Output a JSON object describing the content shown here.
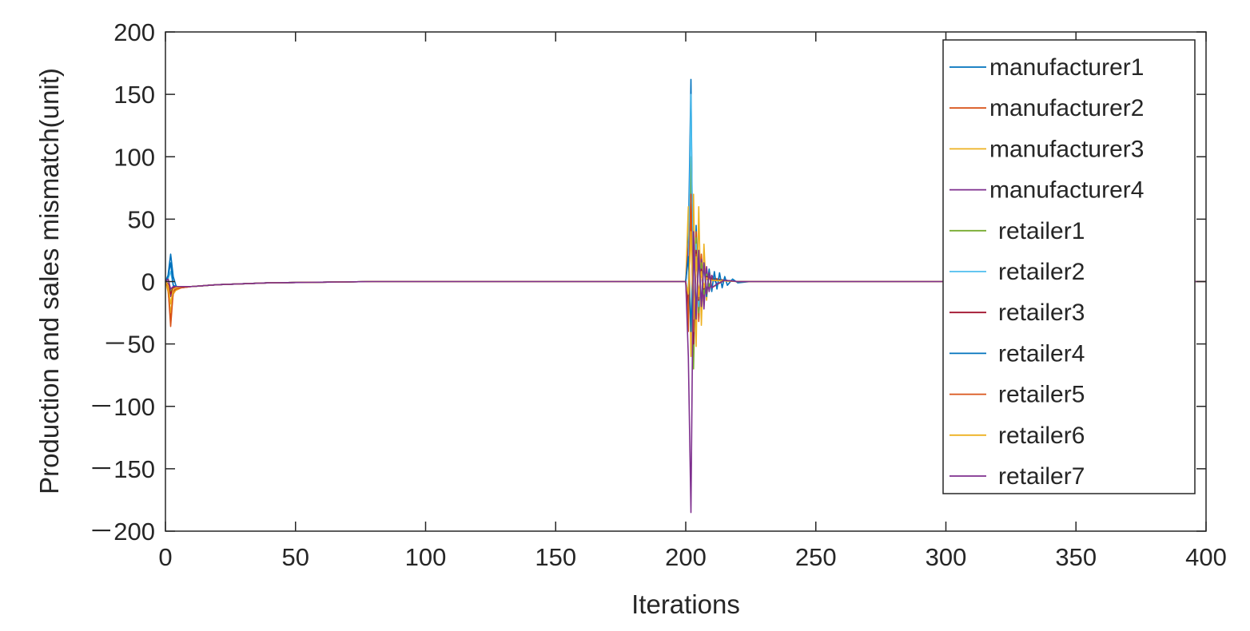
{
  "chart_data": {
    "type": "line",
    "title": "",
    "xlabel": "Iterations",
    "ylabel": "Production and sales mismatch(unit)",
    "xlim": [
      0,
      400
    ],
    "ylim": [
      -200,
      200
    ],
    "xticks": [
      0,
      50,
      100,
      150,
      200,
      250,
      300,
      350,
      400
    ],
    "yticks": [
      200,
      150,
      100,
      50,
      0,
      -50,
      -100,
      -150,
      -200
    ],
    "xtick_labels": [
      "0",
      "50",
      "100",
      "150",
      "200",
      "250",
      "300",
      "350",
      "400"
    ],
    "ytick_labels": [
      "200",
      "150",
      "100",
      "50",
      "0",
      "－50",
      "－100",
      "－150",
      "－200"
    ],
    "grid": false,
    "legend_position": "top-right",
    "series": [
      {
        "name": "manufacturer1",
        "color": "#0072BD",
        "points": [
          [
            0,
            0
          ],
          [
            1,
            5
          ],
          [
            2,
            22
          ],
          [
            3,
            4
          ],
          [
            4,
            -3
          ],
          [
            5,
            -6
          ],
          [
            6,
            -4
          ],
          [
            10,
            -4
          ],
          [
            20,
            -2.5
          ],
          [
            40,
            -1
          ],
          [
            80,
            0
          ],
          [
            200,
            0
          ],
          [
            201,
            30
          ],
          [
            202,
            162
          ],
          [
            203,
            -50
          ],
          [
            204,
            45
          ],
          [
            205,
            -30
          ],
          [
            206,
            20
          ],
          [
            207,
            -14
          ],
          [
            208,
            9
          ],
          [
            209,
            -6
          ],
          [
            210,
            4
          ],
          [
            212,
            -2
          ],
          [
            215,
            1
          ],
          [
            220,
            0
          ],
          [
            400,
            0
          ]
        ]
      },
      {
        "name": "manufacturer2",
        "color": "#D95319",
        "points": [
          [
            0,
            0
          ],
          [
            1,
            -5
          ],
          [
            2,
            -30
          ],
          [
            3,
            -8
          ],
          [
            4,
            -7
          ],
          [
            5,
            -6
          ],
          [
            6,
            -5
          ],
          [
            10,
            -4
          ],
          [
            20,
            -2.5
          ],
          [
            40,
            -1
          ],
          [
            80,
            0
          ],
          [
            200,
            0
          ],
          [
            201,
            -40
          ],
          [
            202,
            78
          ],
          [
            203,
            -60
          ],
          [
            204,
            40
          ],
          [
            205,
            -32
          ],
          [
            206,
            22
          ],
          [
            207,
            -14
          ],
          [
            208,
            8
          ],
          [
            209,
            -5
          ],
          [
            210,
            3
          ],
          [
            215,
            1
          ],
          [
            220,
            0
          ],
          [
            400,
            0
          ]
        ]
      },
      {
        "name": "manufacturer3",
        "color": "#EDB120",
        "points": [
          [
            0,
            0
          ],
          [
            1,
            -8
          ],
          [
            2,
            -25
          ],
          [
            3,
            -10
          ],
          [
            4,
            -7
          ],
          [
            5,
            -6
          ],
          [
            6,
            -5
          ],
          [
            10,
            -4
          ],
          [
            20,
            -2.5
          ],
          [
            40,
            -1
          ],
          [
            80,
            0
          ],
          [
            200,
            0
          ],
          [
            201,
            60
          ],
          [
            202,
            -60
          ],
          [
            203,
            70
          ],
          [
            204,
            -52
          ],
          [
            205,
            60
          ],
          [
            206,
            -35
          ],
          [
            207,
            30
          ],
          [
            208,
            -15
          ],
          [
            209,
            10
          ],
          [
            210,
            -5
          ],
          [
            215,
            1
          ],
          [
            220,
            0
          ],
          [
            400,
            0
          ]
        ]
      },
      {
        "name": "manufacturer4",
        "color": "#7E2F8E",
        "points": [
          [
            0,
            0
          ],
          [
            1,
            -3
          ],
          [
            2,
            -12
          ],
          [
            3,
            -6
          ],
          [
            4,
            -6
          ],
          [
            5,
            -5
          ],
          [
            6,
            -5
          ],
          [
            10,
            -4
          ],
          [
            20,
            -2.5
          ],
          [
            40,
            -1
          ],
          [
            80,
            0
          ],
          [
            200,
            0
          ],
          [
            201,
            25
          ],
          [
            202,
            62
          ],
          [
            203,
            -30
          ],
          [
            204,
            30
          ],
          [
            205,
            -20
          ],
          [
            206,
            18
          ],
          [
            207,
            -22
          ],
          [
            208,
            12
          ],
          [
            209,
            -8
          ],
          [
            210,
            5
          ],
          [
            212,
            -2
          ],
          [
            215,
            1
          ],
          [
            220,
            0
          ],
          [
            400,
            0
          ]
        ]
      },
      {
        "name": "retailer1",
        "color": "#77AC30",
        "points": [
          [
            0,
            0
          ],
          [
            1,
            3
          ],
          [
            2,
            -8
          ],
          [
            3,
            -5
          ],
          [
            4,
            -5
          ],
          [
            6,
            -4
          ],
          [
            10,
            -4
          ],
          [
            20,
            -2.5
          ],
          [
            40,
            -1
          ],
          [
            80,
            0
          ],
          [
            200,
            0
          ],
          [
            201,
            -20
          ],
          [
            202,
            100
          ],
          [
            203,
            -70
          ],
          [
            204,
            35
          ],
          [
            205,
            -25
          ],
          [
            206,
            15
          ],
          [
            207,
            -10
          ],
          [
            208,
            6
          ],
          [
            209,
            -4
          ],
          [
            210,
            2
          ],
          [
            215,
            1
          ],
          [
            220,
            0
          ],
          [
            400,
            0
          ]
        ]
      },
      {
        "name": "retailer2",
        "color": "#4DBEEE",
        "points": [
          [
            0,
            0
          ],
          [
            1,
            2
          ],
          [
            2,
            8
          ],
          [
            3,
            -3
          ],
          [
            4,
            -4
          ],
          [
            6,
            -4
          ],
          [
            10,
            -4
          ],
          [
            20,
            -2.5
          ],
          [
            40,
            -1
          ],
          [
            80,
            0
          ],
          [
            200,
            0
          ],
          [
            201,
            -10
          ],
          [
            202,
            150
          ],
          [
            203,
            -45
          ],
          [
            204,
            30
          ],
          [
            205,
            -20
          ],
          [
            206,
            10
          ],
          [
            207,
            -6
          ],
          [
            208,
            4
          ],
          [
            210,
            2
          ],
          [
            215,
            1
          ],
          [
            220,
            0
          ],
          [
            400,
            0
          ]
        ]
      },
      {
        "name": "retailer3",
        "color": "#A2142F",
        "points": [
          [
            0,
            0
          ],
          [
            1,
            -2
          ],
          [
            2,
            -10
          ],
          [
            3,
            -5
          ],
          [
            4,
            -5
          ],
          [
            6,
            -4
          ],
          [
            10,
            -4
          ],
          [
            20,
            -2.5
          ],
          [
            40,
            -1
          ],
          [
            80,
            0
          ],
          [
            200,
            0
          ],
          [
            201,
            -20
          ],
          [
            202,
            70
          ],
          [
            203,
            -50
          ],
          [
            204,
            25
          ],
          [
            205,
            -15
          ],
          [
            206,
            10
          ],
          [
            207,
            -6
          ],
          [
            208,
            4
          ],
          [
            210,
            2
          ],
          [
            215,
            1
          ],
          [
            220,
            0
          ],
          [
            400,
            0
          ]
        ]
      },
      {
        "name": "retailer4",
        "color": "#0072BD",
        "points": [
          [
            0,
            0
          ],
          [
            1,
            4
          ],
          [
            2,
            15
          ],
          [
            3,
            -3
          ],
          [
            4,
            -4
          ],
          [
            6,
            -4
          ],
          [
            10,
            -4
          ],
          [
            20,
            -2.5
          ],
          [
            40,
            -1
          ],
          [
            80,
            0
          ],
          [
            200,
            0
          ],
          [
            201,
            20
          ],
          [
            202,
            -40
          ],
          [
            203,
            30
          ],
          [
            204,
            -25
          ],
          [
            205,
            20
          ],
          [
            206,
            -18
          ],
          [
            207,
            15
          ],
          [
            208,
            -12
          ],
          [
            209,
            10
          ],
          [
            210,
            -8
          ],
          [
            211,
            8
          ],
          [
            212,
            -6
          ],
          [
            213,
            7
          ],
          [
            214,
            -5
          ],
          [
            215,
            4
          ],
          [
            216,
            -3
          ],
          [
            218,
            2
          ],
          [
            220,
            -1
          ],
          [
            225,
            0
          ],
          [
            400,
            0
          ]
        ]
      },
      {
        "name": "retailer5",
        "color": "#D95319",
        "points": [
          [
            0,
            0
          ],
          [
            1,
            -4
          ],
          [
            2,
            -36
          ],
          [
            3,
            -8
          ],
          [
            4,
            -6
          ],
          [
            6,
            -5
          ],
          [
            10,
            -4
          ],
          [
            20,
            -2.5
          ],
          [
            40,
            -1
          ],
          [
            80,
            0
          ],
          [
            200,
            0
          ],
          [
            201,
            -30
          ],
          [
            202,
            70
          ],
          [
            203,
            -40
          ],
          [
            204,
            22
          ],
          [
            205,
            -14
          ],
          [
            206,
            8
          ],
          [
            207,
            -5
          ],
          [
            208,
            3
          ],
          [
            210,
            1
          ],
          [
            220,
            0
          ],
          [
            400,
            0
          ]
        ]
      },
      {
        "name": "retailer6",
        "color": "#EDB120",
        "points": [
          [
            0,
            0
          ],
          [
            1,
            -3
          ],
          [
            2,
            -18
          ],
          [
            3,
            -6
          ],
          [
            4,
            -5
          ],
          [
            6,
            -4
          ],
          [
            10,
            -4
          ],
          [
            20,
            -2.5
          ],
          [
            40,
            -1
          ],
          [
            80,
            0
          ],
          [
            200,
            0
          ],
          [
            201,
            -10
          ],
          [
            202,
            40
          ],
          [
            203,
            -30
          ],
          [
            204,
            20
          ],
          [
            205,
            -12
          ],
          [
            206,
            8
          ],
          [
            207,
            -5
          ],
          [
            208,
            3
          ],
          [
            210,
            1
          ],
          [
            220,
            0
          ],
          [
            400,
            0
          ]
        ]
      },
      {
        "name": "retailer7",
        "color": "#7E2F8E",
        "points": [
          [
            0,
            0
          ],
          [
            1,
            2
          ],
          [
            2,
            -6
          ],
          [
            3,
            -4
          ],
          [
            4,
            -4
          ],
          [
            6,
            -4
          ],
          [
            10,
            -4
          ],
          [
            20,
            -2.5
          ],
          [
            40,
            -1
          ],
          [
            80,
            0
          ],
          [
            200,
            0
          ],
          [
            201,
            -60
          ],
          [
            202,
            -185
          ],
          [
            203,
            40
          ],
          [
            204,
            -30
          ],
          [
            205,
            25
          ],
          [
            206,
            -20
          ],
          [
            207,
            15
          ],
          [
            208,
            -10
          ],
          [
            209,
            7
          ],
          [
            210,
            -5
          ],
          [
            212,
            -2
          ],
          [
            215,
            1
          ],
          [
            220,
            0
          ],
          [
            400,
            0
          ]
        ]
      }
    ]
  }
}
